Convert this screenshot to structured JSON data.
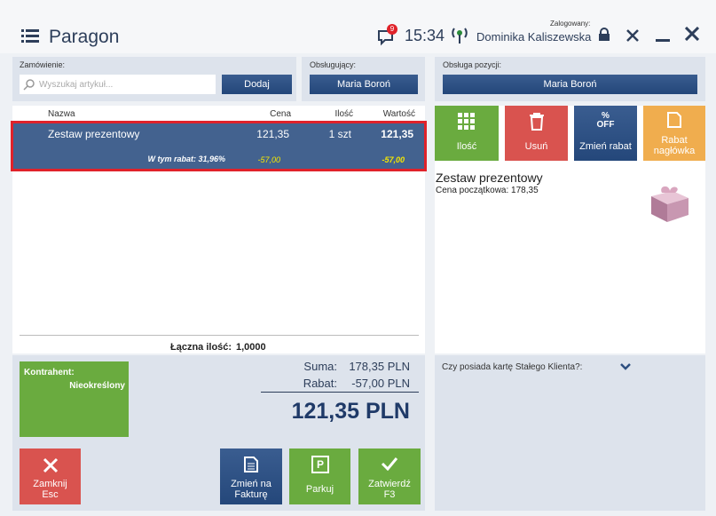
{
  "header": {
    "title": "Paragon",
    "notifications": "9",
    "time": "15:34",
    "logged_label": "Zalogowany:",
    "user": "Dominika Kaliszewska"
  },
  "order": {
    "label": "Zamówienie:",
    "search_placeholder": "Wyszukaj artykuł...",
    "add_button": "Dodaj",
    "served_label": "Obsługujący:",
    "served_by": "Maria Boroń"
  },
  "table": {
    "columns": [
      "Nazwa",
      "Cena",
      "Ilość",
      "Wartość"
    ],
    "rows": [
      {
        "name": "Zestaw prezentowy",
        "price": "121,35",
        "quantity": "1 szt",
        "value": "121,35",
        "discount_label": "W tym rabat: 31,96%",
        "price_discount": "-57,00",
        "value_discount": "-57,00"
      }
    ],
    "total_quantity_label": "Łączna ilość:",
    "total_quantity": "1,0000"
  },
  "customer": {
    "label": "Kontrahent:",
    "value": "Nieokreślony"
  },
  "summary": {
    "sum_label": "Suma:",
    "sum": "178,35 PLN",
    "discount_label": "Rabat:",
    "discount": "-57,00 PLN",
    "total": "121,35 PLN"
  },
  "bottom_buttons": [
    {
      "line1": "Zamknij",
      "line2": "Esc"
    },
    {
      "line1": "Zmień na",
      "line2": "Fakturę"
    },
    {
      "line1": "Parkuj",
      "icon": "P"
    },
    {
      "line1": "Zatwierdź",
      "line2": "F3"
    }
  ],
  "position": {
    "label": "Obsługa pozycji:",
    "served_by": "Maria Boroń",
    "buttons": [
      {
        "line1": "Ilość"
      },
      {
        "line1": "Usuń"
      },
      {
        "line1": "Zmień rabat",
        "icon": "%",
        "icon2": "OFF"
      },
      {
        "line1": "Rabat",
        "line2": "nagłówka"
      }
    ],
    "item_name": "Zestaw prezentowy",
    "item_price": "Cena początkowa: 178,35"
  },
  "loyalty": {
    "question": "Czy posiada kartę Stałego Klienta?:"
  }
}
